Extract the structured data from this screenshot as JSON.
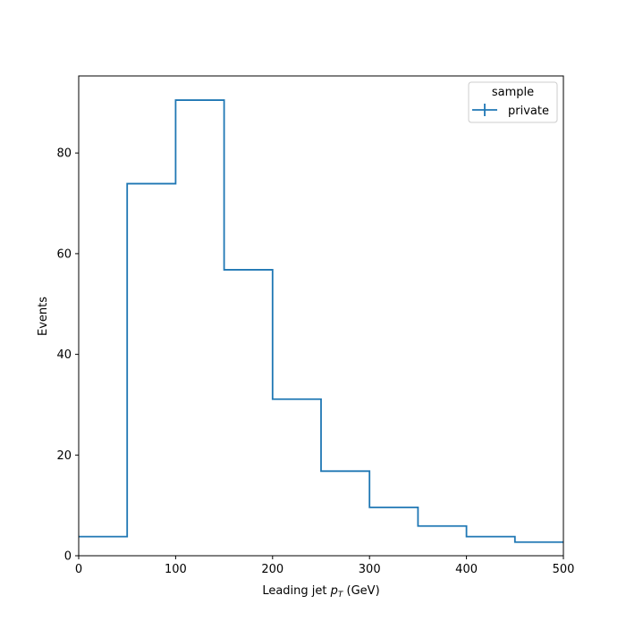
{
  "chart_data": {
    "type": "histogram-step",
    "x_label_main": "Leading jet  ",
    "x_label_math_p": "p",
    "x_label_math_sub": "T",
    "x_label_unit": " (GeV)",
    "ylabel": "Events",
    "xlim": [
      0,
      500
    ],
    "ylim": [
      0,
      95.3
    ],
    "bin_edges": [
      0,
      50,
      100,
      150,
      200,
      250,
      300,
      350,
      400,
      450,
      500
    ],
    "values": [
      3.8,
      73.9,
      90.5,
      56.8,
      31.1,
      16.8,
      9.6,
      5.9,
      3.8,
      2.7
    ],
    "x_ticks": [
      0,
      100,
      200,
      300,
      400,
      500
    ],
    "x_tick_labels": [
      "0",
      "100",
      "200",
      "300",
      "400",
      "500"
    ],
    "y_ticks": [
      0,
      20,
      40,
      60,
      80
    ],
    "y_tick_labels": [
      "0",
      "20",
      "40",
      "60",
      "80"
    ],
    "grid": false,
    "legend": {
      "title": "sample",
      "placement": "top-right",
      "entries": [
        {
          "label": "private",
          "color": "#1f77b4"
        }
      ]
    },
    "series_color": "#1f77b4"
  }
}
